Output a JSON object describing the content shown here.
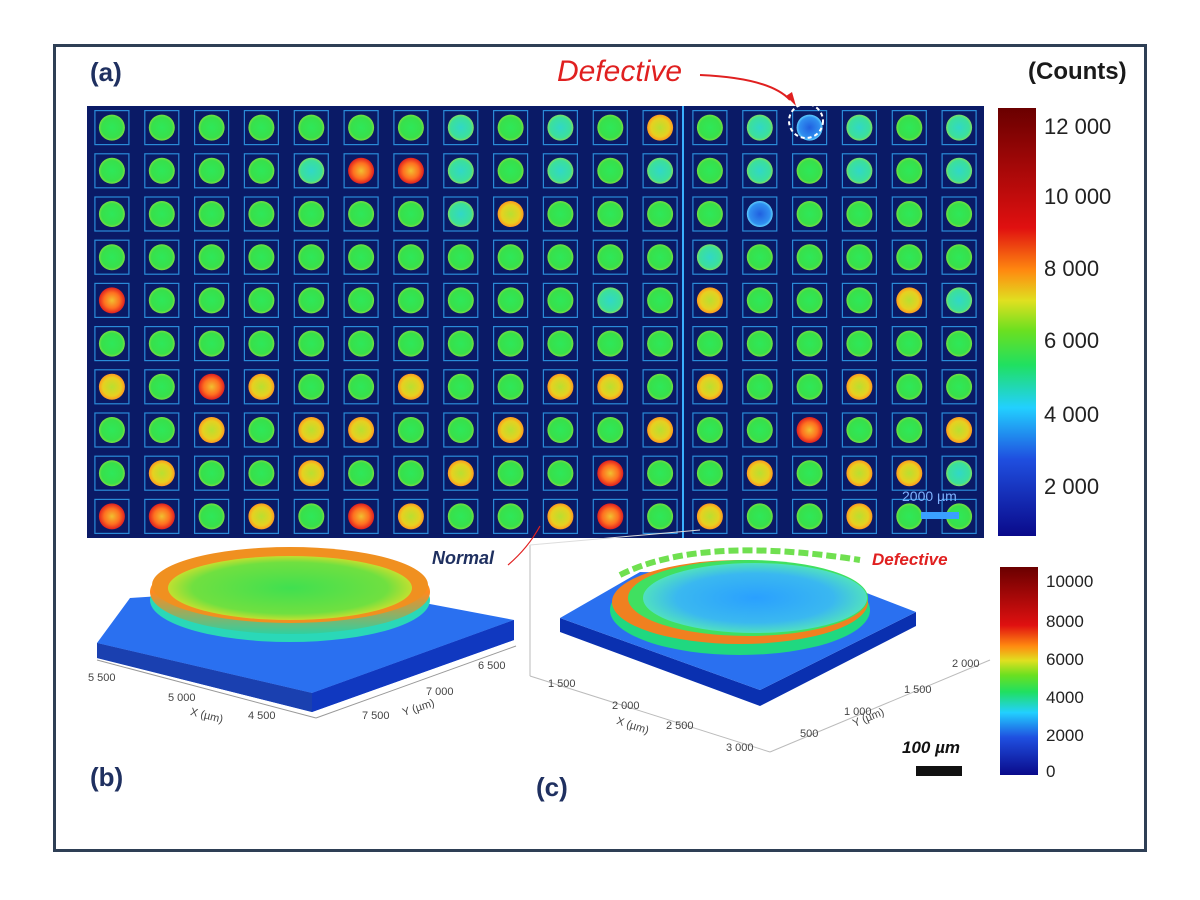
{
  "panels": {
    "a": "(a)",
    "b": "(b)",
    "c": "(c)"
  },
  "annotations": {
    "defective_top": "Defective",
    "normal": "Normal",
    "defective_c": "Defective",
    "counts_title": "(Counts)",
    "map_scale": "2000 µm",
    "surface_scale": "100 µm"
  },
  "colorbar_a": {
    "ticks": [
      "12 000",
      "10 000",
      "8 000",
      "6 000",
      "4 000",
      "2 000"
    ],
    "range": [
      800,
      12600
    ]
  },
  "colorbar_bc": {
    "ticks": [
      "10000",
      "8000",
      "6000",
      "4000",
      "2000",
      "0"
    ],
    "range": [
      0,
      10500
    ]
  },
  "plot_b": {
    "x_axis": "X (µm)",
    "y_axis": "Y (µm)",
    "x_ticks": [
      "5 500",
      "5 000",
      "4 500"
    ],
    "y_ticks": [
      "6 500",
      "7 000",
      "7 500"
    ]
  },
  "plot_c": {
    "x_axis": "X (µm)",
    "y_axis": "Y (µm)",
    "x_ticks": [
      "1 500",
      "2 000",
      "2 500",
      "3 000"
    ],
    "y_ticks": [
      "2 000",
      "1 500",
      "1 000",
      "500"
    ]
  },
  "colors": {
    "frame": "#2e3f55",
    "label_blue": "#1f3060",
    "defect_red": "#e02020",
    "map_background": "#0a1a66"
  }
}
